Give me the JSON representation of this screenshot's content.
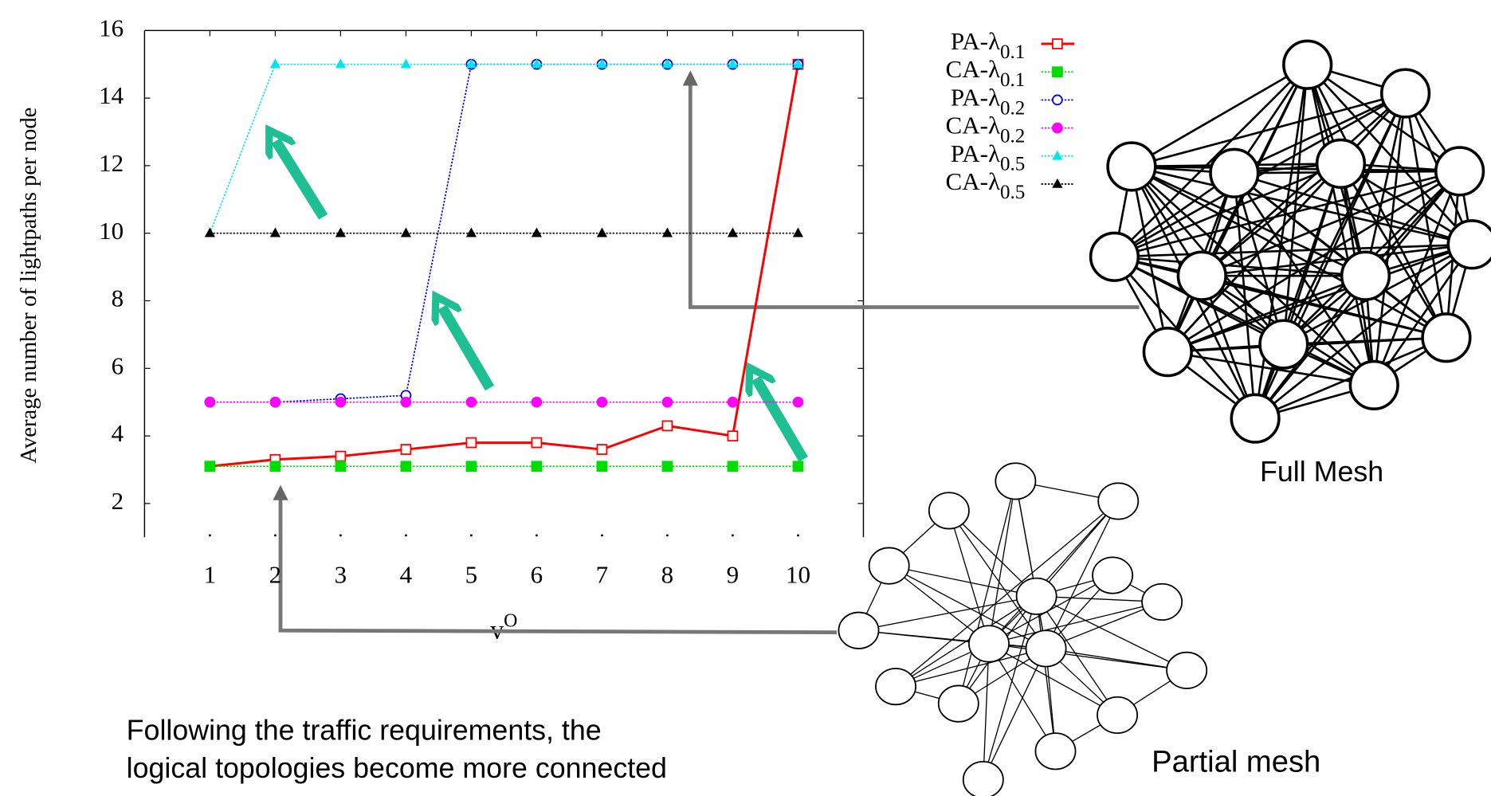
{
  "chart_data": {
    "type": "line",
    "y_label": "Average number of lightpaths per node",
    "x_label": "vO",
    "x": [
      1,
      2,
      3,
      4,
      5,
      6,
      7,
      8,
      9,
      10
    ],
    "xlim": [
      0,
      11
    ],
    "xticks": [
      1,
      2,
      3,
      4,
      5,
      6,
      7,
      8,
      9,
      10
    ],
    "ylim": [
      1,
      16
    ],
    "yticks": [
      2,
      4,
      6,
      8,
      10,
      12,
      14,
      16
    ],
    "legend": "upper right",
    "series": [
      {
        "name": "PA-λ0.1",
        "color": "#ff0000",
        "marker": "square-open",
        "values": [
          3.1,
          3.3,
          3.4,
          3.6,
          3.8,
          3.8,
          3.6,
          4.3,
          4.0,
          15
        ]
      },
      {
        "name": "CA-λ0.1",
        "color": "#00dd00",
        "marker": "square",
        "values": [
          3.1,
          3.1,
          3.1,
          3.1,
          3.1,
          3.1,
          3.1,
          3.1,
          3.1,
          3.1
        ]
      },
      {
        "name": "PA-λ0.2",
        "color": "#0000ee",
        "marker": "circle-open",
        "values": [
          5,
          5,
          5.1,
          5.2,
          15,
          15,
          15,
          15,
          15,
          15
        ]
      },
      {
        "name": "CA-λ0.2",
        "color": "#ff00ff",
        "marker": "circle",
        "values": [
          5,
          5,
          5,
          5,
          5,
          5,
          5,
          5,
          5,
          5
        ]
      },
      {
        "name": "PA-λ0.5",
        "color": "#00e5ee",
        "marker": "triangle",
        "values": [
          10,
          15,
          15,
          15,
          15,
          15,
          15,
          15,
          15,
          15
        ]
      },
      {
        "name": "CA-λ0.5",
        "color": "#000000",
        "marker": "triangle",
        "values": [
          10,
          10,
          10,
          10,
          10,
          10,
          10,
          10,
          10,
          10
        ]
      }
    ],
    "annotations": [
      "Full Mesh",
      "Partial mesh",
      "Following the traffic requirements, the",
      "logical topologies become more connected"
    ]
  }
}
